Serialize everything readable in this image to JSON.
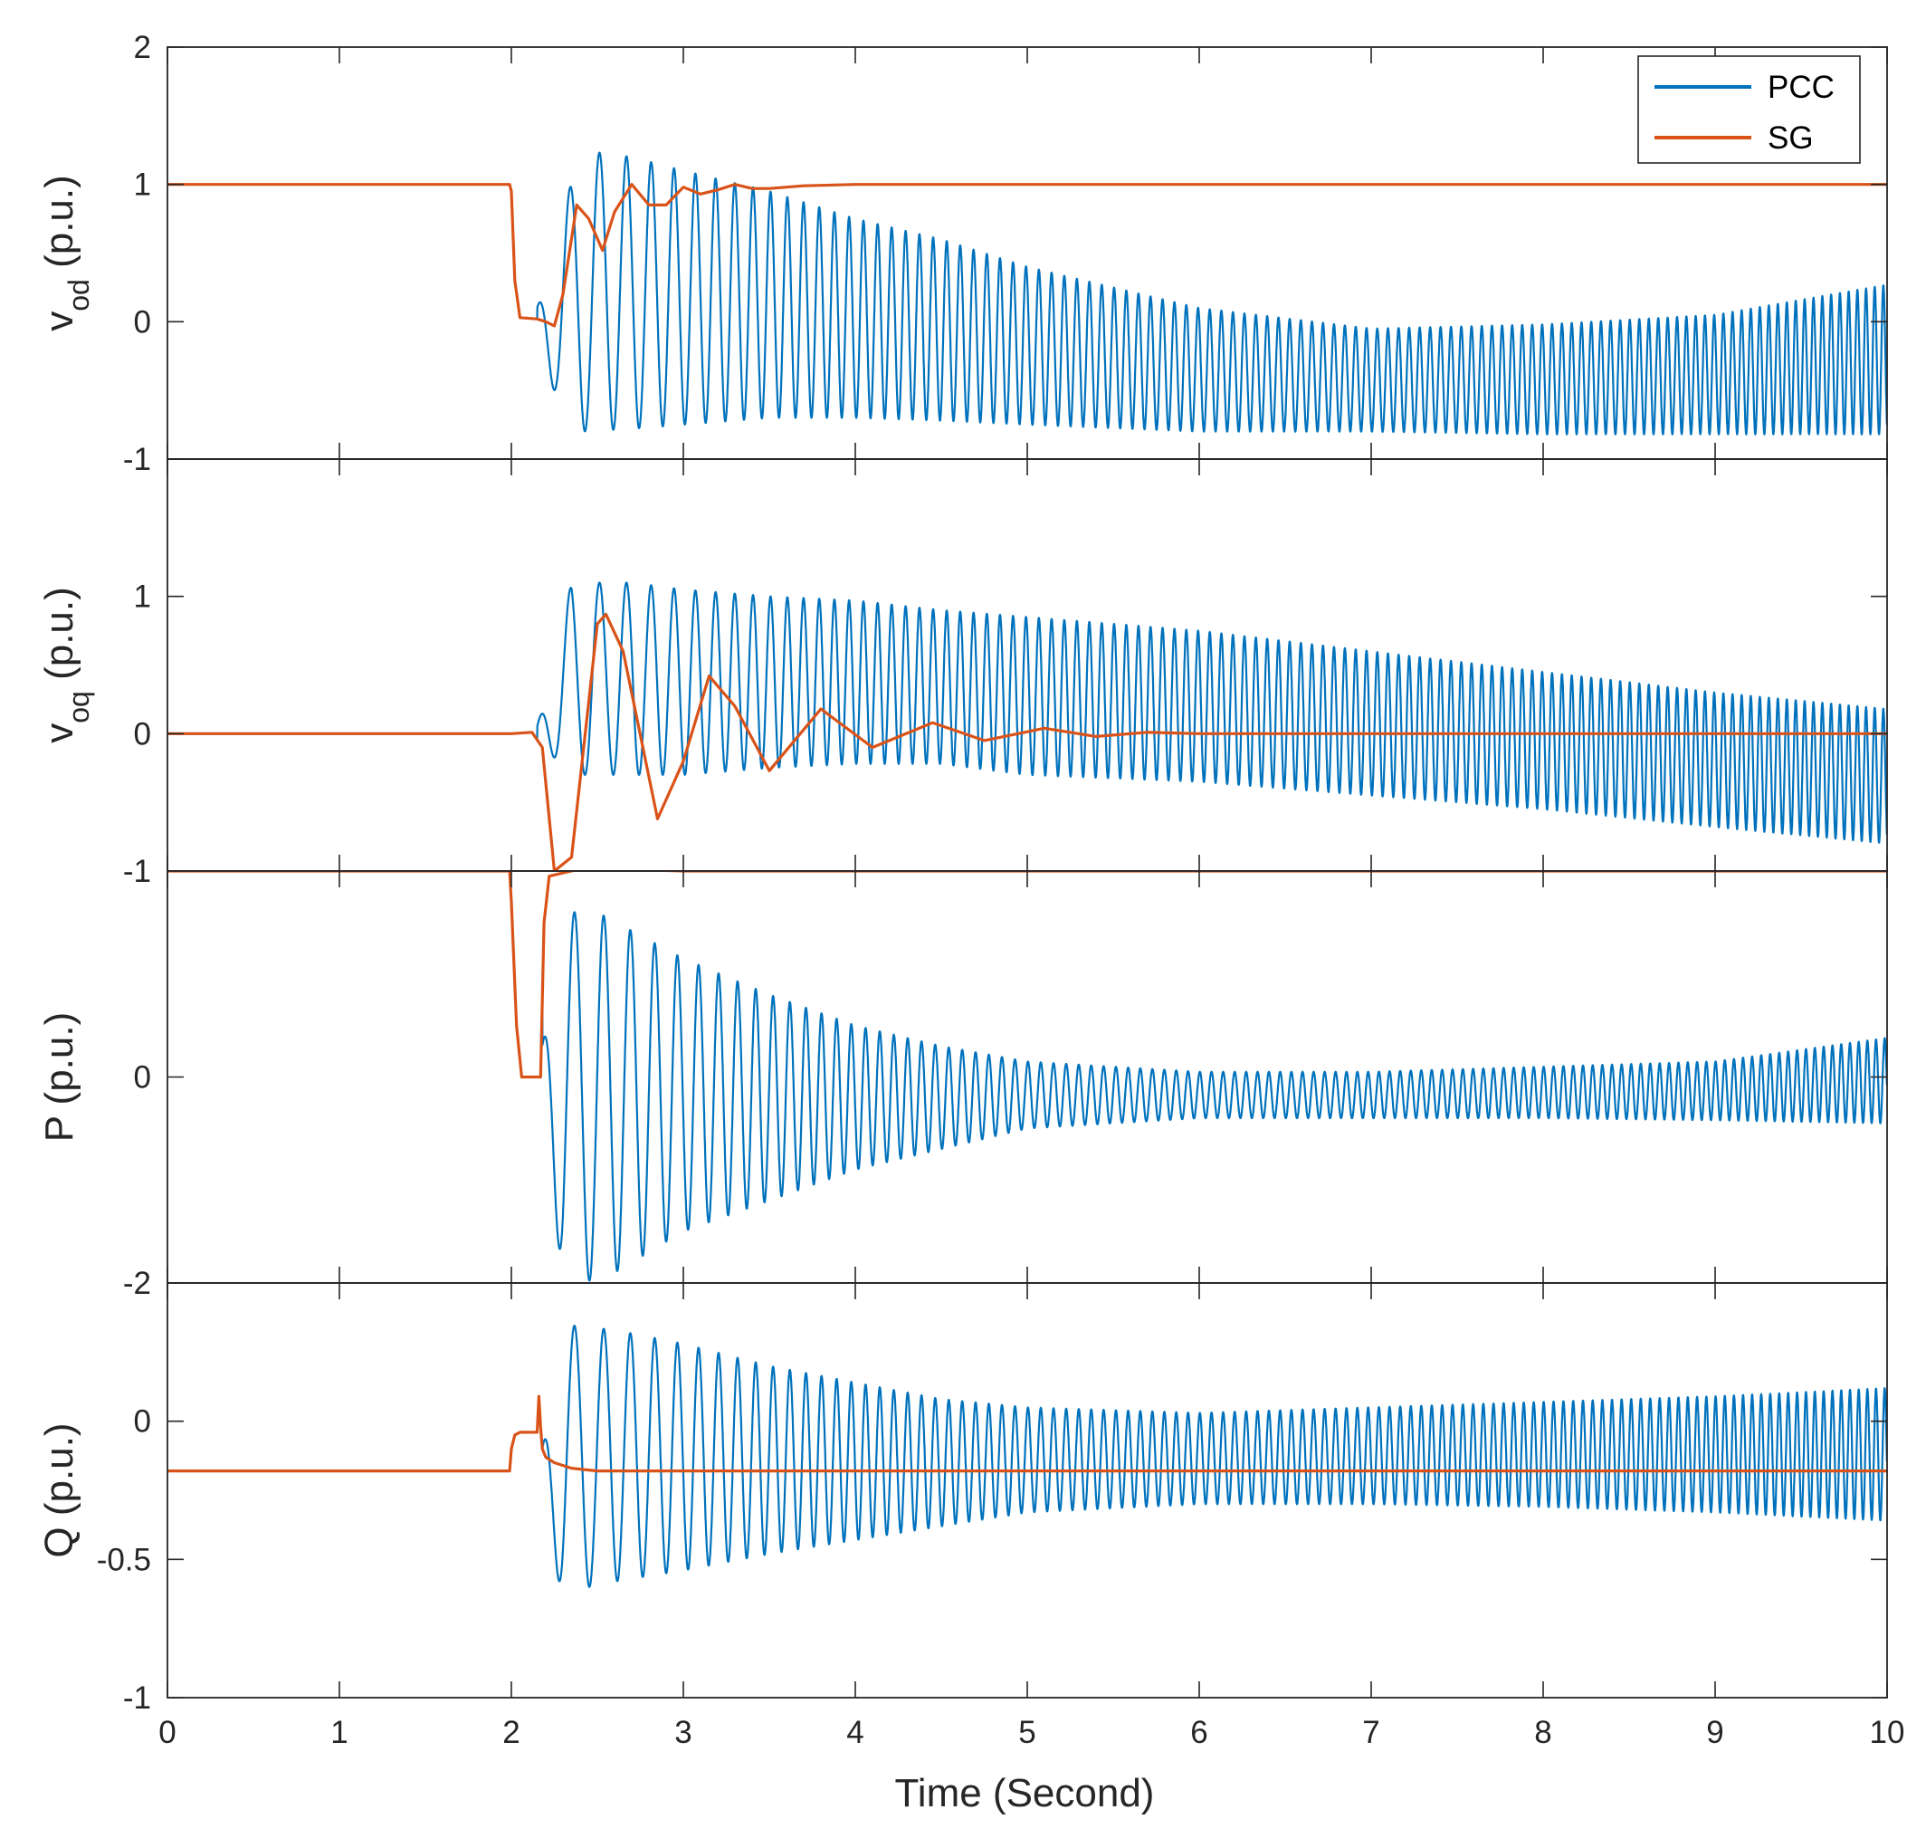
{
  "chart_data": {
    "type": "line",
    "xlabel": "Time (Second)",
    "xlim": [
      0,
      10
    ],
    "x_ticks": [
      0,
      1,
      2,
      3,
      4,
      5,
      6,
      7,
      8,
      9,
      10
    ],
    "x_tick_labels": [
      "0",
      "1",
      "2",
      "3",
      "4",
      "5",
      "6",
      "7",
      "8",
      "9",
      "10"
    ],
    "legend": {
      "placement": "top-right",
      "entries": [
        {
          "name": "PCC",
          "color": "#0072BD"
        },
        {
          "name": "SG",
          "color": "#D95319"
        }
      ]
    },
    "panels": [
      {
        "id": "vod",
        "ylabel": "v",
        "ylabel_sub": "od",
        "ylabel_suffix": " (p.u.)",
        "ylim": [
          -1,
          2
        ],
        "y_ticks": [
          -1,
          0,
          1,
          2
        ],
        "y_tick_labels": [
          "-1",
          "0",
          "1",
          "2"
        ],
        "series": [
          {
            "name": "PCC",
            "envelope": {
              "t": [
                2.15,
                2.4,
                2.7,
                3.0,
                3.5,
                4.0,
                4.5,
                5.0,
                6.0,
                7.0,
                8.0,
                9.0,
                10.0
              ],
              "upper": [
                0.1,
                1.25,
                1.2,
                1.1,
                0.95,
                0.75,
                0.6,
                0.4,
                0.1,
                -0.05,
                -0.02,
                0.05,
                0.27
              ],
              "lower": [
                -0.3,
                -0.8,
                -0.78,
                -0.75,
                -0.7,
                -0.7,
                -0.72,
                -0.75,
                -0.8,
                -0.8,
                -0.82,
                -0.82,
                -0.82
              ]
            },
            "osc_freq": {
              "t": [
                2.15,
                2.5,
                3.0,
                4.0,
                10.0
              ],
              "f": [
                5,
                6,
                8,
                12,
                20
              ]
            }
          },
          {
            "name": "SG",
            "x": [
              0,
              1.99,
              2.0,
              2.02,
              2.05,
              2.15,
              2.2,
              2.25,
              2.3,
              2.38,
              2.45,
              2.53,
              2.6,
              2.7,
              2.8,
              2.9,
              3.0,
              3.1,
              3.2,
              3.3,
              3.4,
              3.5,
              3.7,
              4.0,
              10.0
            ],
            "y": [
              1.0,
              1.0,
              0.95,
              0.3,
              0.03,
              0.02,
              0.0,
              -0.03,
              0.2,
              0.85,
              0.75,
              0.52,
              0.8,
              1.0,
              0.85,
              0.85,
              0.98,
              0.93,
              0.96,
              1.0,
              0.97,
              0.97,
              0.99,
              1.0,
              1.0
            ]
          }
        ]
      },
      {
        "id": "voq",
        "ylabel": "v",
        "ylabel_sub": "oq",
        "ylabel_suffix": " (p.u.)",
        "ylim": [
          -1,
          2
        ],
        "y_ticks": [
          -1,
          0,
          1
        ],
        "y_tick_labels": [
          "-1",
          "0",
          "1"
        ],
        "series": [
          {
            "name": "PCC",
            "envelope": {
              "t": [
                2.15,
                2.35,
                2.7,
                3.0,
                3.5,
                4.0,
                4.5,
                5.0,
                6.0,
                7.0,
                8.0,
                9.0,
                10.0
              ],
              "upper": [
                0.05,
                1.1,
                1.1,
                1.05,
                1.0,
                0.97,
                0.9,
                0.85,
                0.75,
                0.6,
                0.45,
                0.3,
                0.18
              ],
              "lower": [
                -0.05,
                -0.3,
                -0.3,
                -0.3,
                -0.25,
                -0.22,
                -0.22,
                -0.3,
                -0.35,
                -0.45,
                -0.55,
                -0.68,
                -0.8
              ]
            },
            "osc_freq": {
              "t": [
                2.15,
                2.5,
                3.0,
                4.0,
                10.0
              ],
              "f": [
                5,
                6,
                8,
                12,
                20
              ]
            }
          },
          {
            "name": "SG",
            "x": [
              0,
              2.0,
              2.12,
              2.18,
              2.25,
              2.35,
              2.5,
              2.55,
              2.65,
              2.85,
              3.0,
              3.15,
              3.3,
              3.5,
              3.8,
              4.1,
              4.45,
              4.75,
              5.1,
              5.4,
              5.7,
              6.0,
              10.0
            ],
            "y": [
              0.0,
              0.0,
              0.01,
              -0.1,
              -1.0,
              -0.9,
              0.8,
              0.87,
              0.6,
              -0.62,
              -0.2,
              0.42,
              0.2,
              -0.27,
              0.18,
              -0.1,
              0.08,
              -0.05,
              0.04,
              -0.02,
              0.01,
              0.0,
              0.0
            ]
          }
        ]
      },
      {
        "id": "P",
        "ylabel": "P",
        "ylabel_sub": "",
        "ylabel_suffix": " (p.u.)",
        "ylim": [
          -2,
          2
        ],
        "y_ticks": [
          -2,
          0
        ],
        "y_tick_labels": [
          "-2",
          "0"
        ],
        "series": [
          {
            "name": "PCC",
            "envelope": {
              "t": [
                2.18,
                2.3,
                2.5,
                3.0,
                3.5,
                4.0,
                4.5,
                5.0,
                6.0,
                7.0,
                8.0,
                9.0,
                10.0
              ],
              "upper": [
                0.3,
                1.6,
                1.6,
                1.15,
                0.8,
                0.5,
                0.3,
                0.15,
                0.05,
                0.05,
                0.1,
                0.15,
                0.38
              ],
              "lower": [
                -0.6,
                -1.9,
                -2.0,
                -1.5,
                -1.2,
                -0.9,
                -0.7,
                -0.5,
                -0.4,
                -0.4,
                -0.4,
                -0.42,
                -0.45
              ]
            },
            "osc_freq": {
              "t": [
                2.15,
                2.5,
                3.0,
                4.0,
                10.0
              ],
              "f": [
                5,
                6,
                8,
                12,
                20
              ]
            }
          },
          {
            "name": "SG",
            "x": [
              0,
              1.99,
              2.0,
              2.03,
              2.06,
              2.15,
              2.17,
              2.19,
              2.22,
              2.4,
              2.6,
              3.0,
              10.0
            ],
            "y": [
              2.0,
              2.0,
              1.7,
              0.5,
              0.0,
              0.0,
              0.0,
              1.5,
              1.95,
              2.02,
              2.02,
              2.0,
              2.0
            ]
          }
        ]
      },
      {
        "id": "Q",
        "ylabel": "Q",
        "ylabel_sub": "",
        "ylabel_suffix": " (p.u.)",
        "ylim": [
          -1,
          0.5
        ],
        "y_ticks": [
          -1,
          -0.5,
          0
        ],
        "y_tick_labels": [
          "-1",
          "-0.5",
          "0"
        ],
        "series": [
          {
            "name": "PCC",
            "envelope": {
              "t": [
                2.18,
                2.3,
                2.6,
                3.0,
                3.5,
                4.0,
                4.5,
                5.0,
                6.0,
                7.0,
                8.0,
                9.0,
                10.0
              ],
              "upper": [
                -0.1,
                0.35,
                0.33,
                0.28,
                0.2,
                0.14,
                0.08,
                0.05,
                0.03,
                0.05,
                0.07,
                0.09,
                0.12
              ],
              "lower": [
                -0.4,
                -0.62,
                -0.58,
                -0.54,
                -0.48,
                -0.43,
                -0.38,
                -0.33,
                -0.3,
                -0.3,
                -0.31,
                -0.33,
                -0.36
              ]
            },
            "osc_freq": {
              "t": [
                2.15,
                2.5,
                3.0,
                4.0,
                10.0
              ],
              "f": [
                5,
                6,
                8,
                12,
                20
              ]
            }
          },
          {
            "name": "SG",
            "x": [
              0,
              1.99,
              2.0,
              2.02,
              2.05,
              2.1,
              2.15,
              2.16,
              2.17,
              2.18,
              2.2,
              2.25,
              2.35,
              2.5,
              2.8,
              10.0
            ],
            "y": [
              -0.18,
              -0.18,
              -0.1,
              -0.05,
              -0.04,
              -0.04,
              -0.04,
              0.09,
              -0.02,
              -0.1,
              -0.13,
              -0.15,
              -0.17,
              -0.18,
              -0.18,
              -0.18
            ]
          }
        ]
      }
    ]
  }
}
